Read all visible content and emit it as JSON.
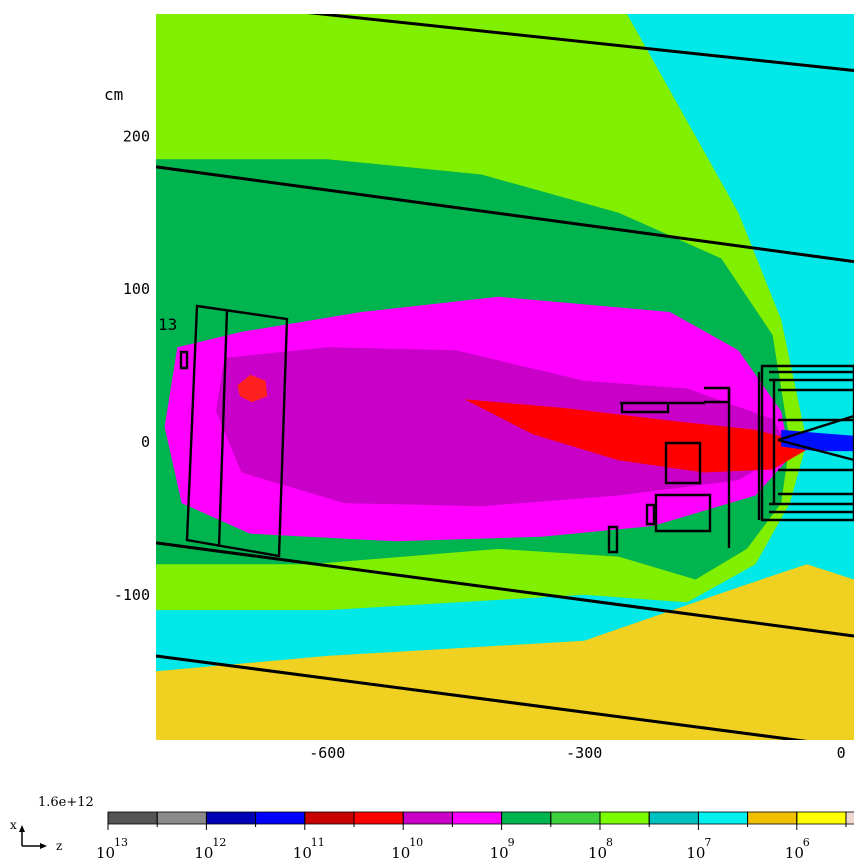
{
  "chart_data": {
    "type": "heatmap",
    "title": "",
    "y_unit_label": "cm",
    "xlabel": "",
    "ylabel": "",
    "xlim": [
      -800,
      15
    ],
    "ylim": [
      -195,
      280
    ],
    "x_ticks": [
      -600,
      -300,
      0
    ],
    "x_tick_labels": [
      "-600",
      "-300",
      "0"
    ],
    "y_ticks": [
      200,
      100,
      0,
      -100
    ],
    "y_tick_labels": [
      "200",
      "100",
      "0",
      "-100"
    ],
    "annotation": "13",
    "scale": "log",
    "colorbar": {
      "max_label": "1.6e+12",
      "exponents": [
        "13",
        "12",
        "11",
        "10",
        "9",
        "8",
        "7",
        "6"
      ],
      "base": "10",
      "colors": [
        "#555555",
        "#8a8a8a",
        "#0000b4",
        "#0000ff",
        "#c80000",
        "#ff0000",
        "#c800c8",
        "#ff00ff",
        "#00b450",
        "#3cd03c",
        "#7cfc00",
        "#00c0c0",
        "#00f0f0",
        "#f0c000",
        "#ffff00",
        "#f0d8d0"
      ]
    },
    "axes_labels": {
      "x": "x",
      "z": "z"
    },
    "regions": [
      {
        "level": "1e6-1e7",
        "color": "#f0d020",
        "polygon": [
          [
            -800,
            -195
          ],
          [
            15,
            -195
          ],
          [
            15,
            280
          ],
          [
            -800,
            280
          ]
        ]
      },
      {
        "level": "1e7-1e8",
        "color": "#00e8e8",
        "polygon": [
          [
            -800,
            -150
          ],
          [
            -600,
            -140
          ],
          [
            -300,
            -130
          ],
          [
            -120,
            -95
          ],
          [
            -40,
            -80
          ],
          [
            15,
            -90
          ],
          [
            15,
            280
          ],
          [
            -800,
            280
          ]
        ]
      },
      {
        "level": "1e8-1e9",
        "color": "#80f000",
        "polygon": [
          [
            -800,
            -110
          ],
          [
            -600,
            -110
          ],
          [
            -300,
            -100
          ],
          [
            -180,
            -105
          ],
          [
            -100,
            -80
          ],
          [
            -60,
            -40
          ],
          [
            -40,
            0
          ],
          [
            -70,
            80
          ],
          [
            -120,
            150
          ],
          [
            -200,
            230
          ],
          [
            -250,
            280
          ],
          [
            -800,
            280
          ]
        ]
      },
      {
        "level": "1e9-1e10",
        "color": "#00b450",
        "polygon": [
          [
            -800,
            -80
          ],
          [
            -620,
            -80
          ],
          [
            -400,
            -70
          ],
          [
            -260,
            -75
          ],
          [
            -170,
            -90
          ],
          [
            -110,
            -70
          ],
          [
            -70,
            -40
          ],
          [
            -60,
            0
          ],
          [
            -80,
            70
          ],
          [
            -140,
            120
          ],
          [
            -260,
            150
          ],
          [
            -420,
            175
          ],
          [
            -600,
            185
          ],
          [
            -800,
            185
          ]
        ]
      },
      {
        "level": "1e10-1e11",
        "color": "#ff00ff",
        "polygon": [
          [
            -775,
            62
          ],
          [
            -700,
            72
          ],
          [
            -560,
            85
          ],
          [
            -400,
            95
          ],
          [
            -300,
            90
          ],
          [
            -200,
            85
          ],
          [
            -120,
            60
          ],
          [
            -70,
            20
          ],
          [
            -60,
            -10
          ],
          [
            -100,
            -35
          ],
          [
            -220,
            -55
          ],
          [
            -350,
            -62
          ],
          [
            -520,
            -65
          ],
          [
            -690,
            -60
          ],
          [
            -770,
            -40
          ],
          [
            -790,
            10
          ]
        ]
      },
      {
        "level": "1e10-1e11 inner",
        "color": "#c800c8",
        "polygon": [
          [
            -720,
            55
          ],
          [
            -600,
            62
          ],
          [
            -450,
            60
          ],
          [
            -300,
            40
          ],
          [
            -180,
            35
          ],
          [
            -80,
            15
          ],
          [
            -60,
            -5
          ],
          [
            -120,
            -25
          ],
          [
            -260,
            -35
          ],
          [
            -420,
            -42
          ],
          [
            -580,
            -40
          ],
          [
            -700,
            -20
          ],
          [
            -730,
            20
          ]
        ]
      },
      {
        "level": "1e11-1e12",
        "color": "#ff0000",
        "polygon": [
          [
            -440,
            28
          ],
          [
            -320,
            22
          ],
          [
            -200,
            14
          ],
          [
            -100,
            8
          ],
          [
            -60,
            2
          ],
          [
            -40,
            -5
          ],
          [
            -80,
            -18
          ],
          [
            -160,
            -20
          ],
          [
            -260,
            -12
          ],
          [
            -360,
            5
          ]
        ]
      },
      {
        "level": "1e11-1e12 spot",
        "color": "#ff2020",
        "polygon": [
          [
            -705,
            37
          ],
          [
            -690,
            44
          ],
          [
            -672,
            40
          ],
          [
            -670,
            30
          ],
          [
            -688,
            26
          ],
          [
            -702,
            30
          ]
        ]
      },
      {
        "level": "1e12-1e13",
        "color": "#0010ff",
        "polygon": [
          [
            -70,
            8
          ],
          [
            -30,
            6
          ],
          [
            15,
            4
          ],
          [
            15,
            -6
          ],
          [
            -30,
            -6
          ],
          [
            -70,
            -3
          ]
        ]
      }
    ],
    "lines": [
      {
        "x": [
          -800,
          15
        ],
        "y": [
          180,
          118
        ]
      },
      {
        "x": [
          -800,
          15
        ],
        "y": [
          -66,
          -127
        ]
      },
      {
        "x": [
          -800,
          15
        ],
        "y": [
          -140,
          -200
        ]
      },
      {
        "x": [
          -640,
          15
        ],
        "y": [
          282,
          243
        ]
      }
    ]
  }
}
